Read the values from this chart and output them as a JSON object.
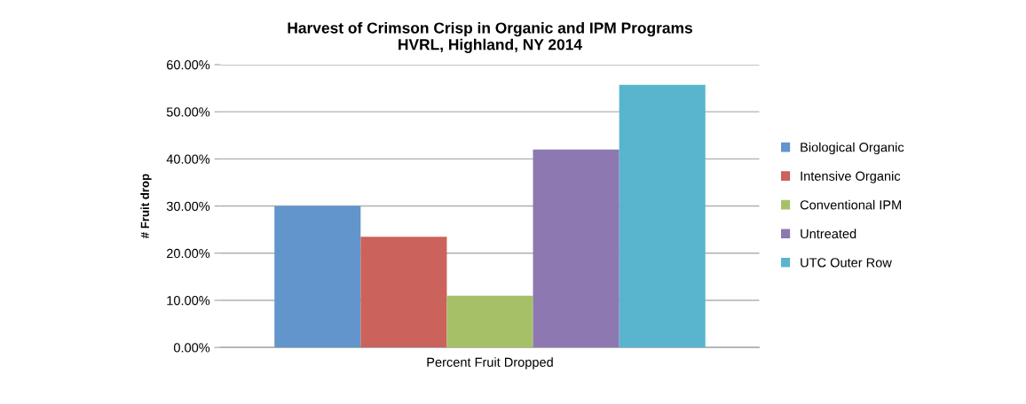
{
  "chart_data": {
    "type": "bar",
    "title": "Harvest of Crimson Crisp in Organic and IPM Programs\nHVRL, Highland, NY 2014",
    "ylabel": "# Fruit drop",
    "categories": [
      "Percent Fruit Dropped"
    ],
    "series": [
      {
        "name": "Biological Organic",
        "color": "#6195cb",
        "values": [
          30
        ]
      },
      {
        "name": "Intensive Organic",
        "color": "#cc625c",
        "values": [
          23.5
        ]
      },
      {
        "name": "Conventional IPM",
        "color": "#a6c068",
        "values": [
          11
        ]
      },
      {
        "name": "Untreated",
        "color": "#8d78b1",
        "values": [
          42
        ]
      },
      {
        "name": "UTC Outer Row",
        "color": "#58b5cd",
        "values": [
          55.7
        ]
      }
    ],
    "ylim": [
      0,
      60
    ],
    "yticks": [
      {
        "value": 0,
        "label": "0.00%"
      },
      {
        "value": 10,
        "label": "10.00%"
      },
      {
        "value": 20,
        "label": "20.00%"
      },
      {
        "value": 30,
        "label": "30.00%"
      },
      {
        "value": 40,
        "label": "40.00%"
      },
      {
        "value": 50,
        "label": "50.00%"
      },
      {
        "value": 60,
        "label": "60.00%"
      }
    ],
    "grid": "y",
    "legend": "right"
  }
}
